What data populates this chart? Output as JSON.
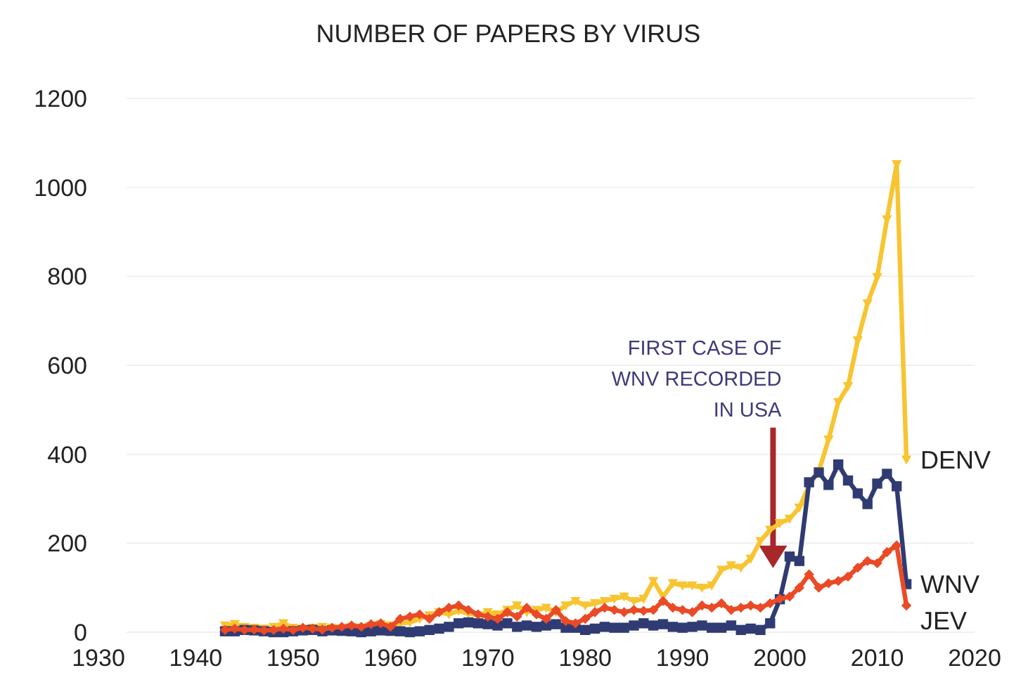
{
  "chart_data": {
    "type": "line",
    "title": "NUMBER OF PAPERS BY VIRUS",
    "x": [
      1943,
      1944,
      1945,
      1946,
      1947,
      1948,
      1949,
      1950,
      1951,
      1952,
      1953,
      1954,
      1955,
      1956,
      1957,
      1958,
      1959,
      1960,
      1961,
      1962,
      1963,
      1964,
      1965,
      1966,
      1967,
      1968,
      1969,
      1970,
      1971,
      1972,
      1973,
      1974,
      1975,
      1976,
      1977,
      1978,
      1979,
      1980,
      1981,
      1982,
      1983,
      1984,
      1985,
      1986,
      1987,
      1988,
      1989,
      1990,
      1991,
      1992,
      1993,
      1994,
      1995,
      1996,
      1997,
      1998,
      1999,
      2000,
      2001,
      2002,
      2003,
      2004,
      2005,
      2006,
      2007,
      2008,
      2009,
      2010,
      2011,
      2012,
      2013
    ],
    "series": [
      {
        "name": "DENV",
        "color": "#f7c531",
        "marker": "triangle",
        "values": [
          15,
          18,
          12,
          10,
          8,
          12,
          20,
          10,
          8,
          10,
          12,
          10,
          8,
          12,
          10,
          14,
          18,
          15,
          20,
          22,
          30,
          38,
          45,
          40,
          48,
          42,
          38,
          45,
          40,
          50,
          60,
          45,
          50,
          55,
          45,
          60,
          70,
          60,
          65,
          70,
          75,
          80,
          70,
          75,
          115,
          80,
          110,
          105,
          105,
          100,
          105,
          140,
          150,
          145,
          165,
          205,
          230,
          245,
          255,
          280,
          330,
          362,
          433,
          517,
          553,
          656,
          739,
          798,
          928,
          1052,
          388
        ]
      },
      {
        "name": "WNV",
        "color": "#2f3b72",
        "marker": "square",
        "values": [
          2,
          2,
          5,
          4,
          2,
          0,
          0,
          2,
          4,
          5,
          2,
          4,
          3,
          2,
          0,
          2,
          4,
          3,
          2,
          0,
          2,
          5,
          8,
          12,
          20,
          22,
          20,
          18,
          15,
          20,
          12,
          15,
          12,
          15,
          18,
          10,
          10,
          5,
          8,
          12,
          10,
          10,
          15,
          20,
          15,
          18,
          12,
          10,
          12,
          15,
          10,
          10,
          15,
          5,
          8,
          5,
          20,
          74,
          170,
          160,
          337,
          359,
          331,
          377,
          341,
          312,
          288,
          334,
          356,
          328,
          108
        ]
      },
      {
        "name": "JEV",
        "color": "#ea4a26",
        "marker": "diamond",
        "values": [
          5,
          8,
          5,
          6,
          4,
          5,
          8,
          5,
          10,
          8,
          6,
          10,
          12,
          15,
          12,
          18,
          20,
          12,
          30,
          35,
          40,
          30,
          45,
          55,
          60,
          50,
          40,
          35,
          30,
          45,
          35,
          55,
          40,
          30,
          50,
          25,
          20,
          30,
          45,
          55,
          50,
          45,
          50,
          48,
          50,
          70,
          55,
          50,
          45,
          60,
          55,
          65,
          50,
          55,
          60,
          55,
          65,
          75,
          80,
          100,
          130,
          100,
          110,
          115,
          125,
          145,
          160,
          155,
          180,
          195,
          60
        ]
      }
    ],
    "xlim": [
      1930,
      2020
    ],
    "xticks": [
      1930,
      1940,
      1950,
      1960,
      1970,
      1980,
      1990,
      2000,
      2010,
      2020
    ],
    "ylim": [
      0,
      1200
    ],
    "yticks": [
      0,
      200,
      400,
      600,
      800,
      1000,
      1200
    ],
    "grid": "y",
    "legend": false,
    "annotations": [
      "FIRST CASE OF\nWNV RECORDED\nIN USA"
    ]
  }
}
